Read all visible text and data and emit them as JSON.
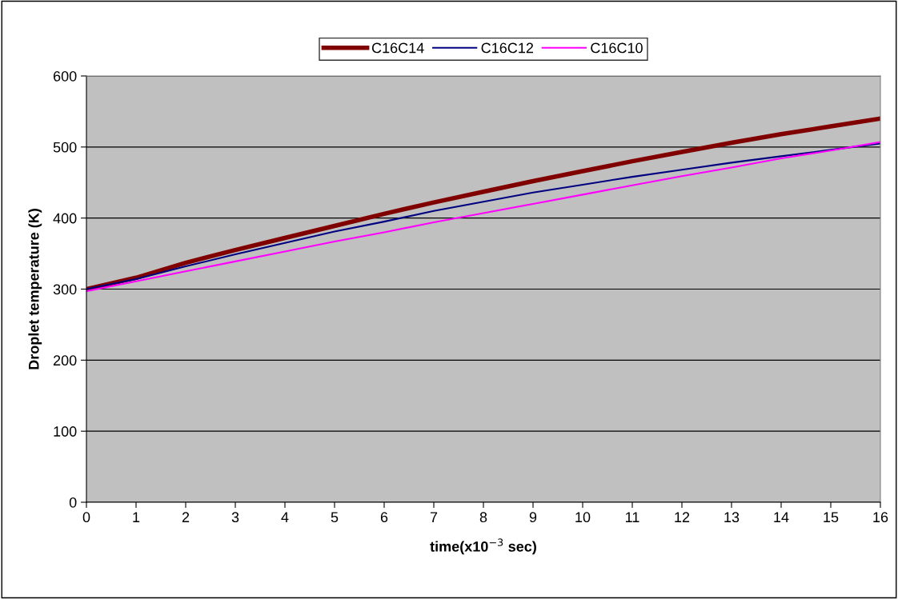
{
  "chart_data": {
    "type": "line",
    "xlabel": "time(x10$^{−3}$ sec)",
    "ylabel": "Droplet temperature (K)",
    "x": [
      0,
      1,
      2,
      3,
      4,
      5,
      6,
      7,
      8,
      9,
      10,
      11,
      12,
      13,
      14,
      15,
      16
    ],
    "series": [
      {
        "name": "C16C14",
        "color": "#800000",
        "values": [
          300,
          316,
          337,
          355,
          372,
          389,
          406,
          422,
          437,
          452,
          466,
          480,
          493,
          506,
          518,
          529,
          540
        ]
      },
      {
        "name": "C16C12",
        "color": "#000080",
        "values": [
          300,
          314,
          332,
          349,
          365,
          381,
          395,
          410,
          423,
          436,
          447,
          458,
          468,
          478,
          487,
          496,
          505
        ]
      },
      {
        "name": "C16C10",
        "color": "#ff00ff",
        "values": [
          297,
          311,
          325,
          339,
          353,
          367,
          380,
          394,
          407,
          420,
          433,
          446,
          459,
          471,
          484,
          495,
          507
        ]
      }
    ],
    "xlim": [
      0,
      16
    ],
    "xticks": [
      0,
      1,
      2,
      3,
      4,
      5,
      6,
      7,
      8,
      9,
      10,
      11,
      12,
      13,
      14,
      15,
      16
    ],
    "ylim": [
      0,
      600
    ],
    "yticks": [
      0,
      100,
      200,
      300,
      400,
      500,
      600
    ],
    "grid": "y",
    "legend": "top",
    "marker": "none",
    "line_style": "solid"
  }
}
